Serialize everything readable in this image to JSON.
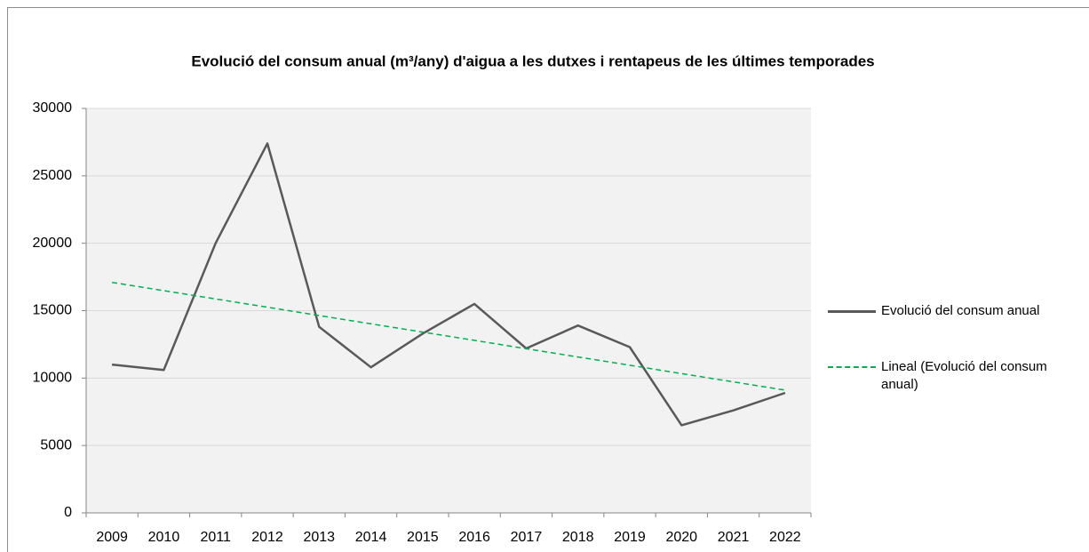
{
  "chart_data": {
    "type": "line",
    "title": "Evolució del consum anual (m³/any) d'aigua a les dutxes i rentapeus de les últimes temporades",
    "categories": [
      "2009",
      "2010",
      "2011",
      "2012",
      "2013",
      "2014",
      "2015",
      "2016",
      "2017",
      "2018",
      "2019",
      "2020",
      "2021",
      "2022"
    ],
    "series": [
      {
        "name": "Evolució del consum anual",
        "color": "#595959",
        "dashed": false,
        "values": [
          11000,
          10600,
          20000,
          27400,
          13800,
          10800,
          13300,
          15500,
          12200,
          13900,
          12300,
          6500,
          7600,
          8900
        ]
      },
      {
        "name": "Lineal (Evolució del consum anual)",
        "color": "#00b050",
        "dashed": true,
        "values": [
          17100,
          16485,
          15870,
          15255,
          14640,
          14025,
          13410,
          12795,
          12180,
          11565,
          10950,
          10335,
          9720,
          9105
        ]
      }
    ],
    "ylim": [
      0,
      30000
    ],
    "yticks": [
      0,
      5000,
      10000,
      15000,
      20000,
      25000,
      30000
    ],
    "grid": true,
    "legend": "right"
  }
}
